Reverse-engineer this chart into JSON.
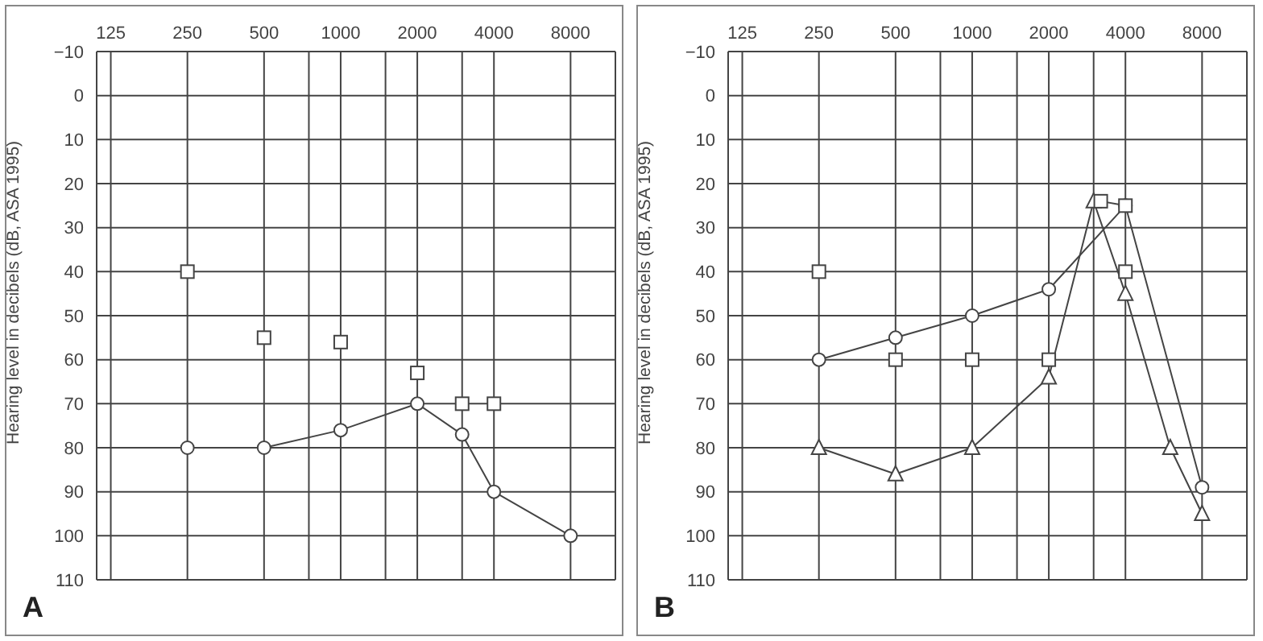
{
  "chart_data": [
    {
      "type": "line",
      "title": "A",
      "ylabel": "Hearing level in decibels (dB, ASA 1995)",
      "xlim": [
        110,
        12000
      ],
      "xticks": [
        125,
        250,
        {
          "value": 750,
          "label": null
        },
        500,
        1000,
        {
          "value": 1500,
          "label": null
        },
        2000,
        {
          "value": 3000,
          "label": null
        },
        4000,
        8000
      ],
      "ylim": [
        110,
        -10
      ],
      "yticks": [
        -10,
        0,
        10,
        20,
        30,
        40,
        50,
        60,
        70,
        80,
        90,
        100,
        110
      ],
      "grid": true,
      "log": "x",
      "series": [
        {
          "color": "#444444",
          "marker": "circle",
          "line_style": "solid",
          "x": [
            250,
            500,
            1000,
            2000,
            3000,
            4000,
            8000
          ],
          "values": [
            80,
            80,
            76,
            70,
            77,
            90,
            100
          ]
        },
        {
          "type": "scatter",
          "color": "#444444",
          "marker": "square",
          "x": [
            250,
            500,
            1000,
            2000,
            3000,
            4000
          ],
          "values": [
            40,
            55,
            56,
            63,
            70,
            70
          ]
        }
      ]
    },
    {
      "type": "line",
      "title": "B",
      "ylabel": "Hearing level in decibels (dB, ASA 1995)",
      "xlim": [
        110,
        12000
      ],
      "xticks": [
        125,
        250,
        {
          "value": 750,
          "label": null
        },
        500,
        1000,
        {
          "value": 1500,
          "label": null
        },
        2000,
        {
          "value": 3000,
          "label": null
        },
        4000,
        8000
      ],
      "ylim": [
        110,
        -10
      ],
      "yticks": [
        -10,
        0,
        10,
        20,
        30,
        40,
        50,
        60,
        70,
        80,
        90,
        100,
        110
      ],
      "grid": true,
      "log": "x",
      "series": [
        {
          "color": "#444444",
          "marker": "circle",
          "line_style": "solid",
          "x": [
            250,
            500,
            1000,
            2000,
            4000,
            8000
          ],
          "values": [
            60,
            55,
            50,
            44,
            25,
            89
          ]
        },
        {
          "color": "#444444",
          "marker": "triangle",
          "line_style": "solid",
          "x": [
            250,
            500,
            1000,
            2000,
            3000,
            4000,
            6000,
            8000
          ],
          "values": [
            80,
            86,
            80,
            64,
            24,
            45,
            80,
            95
          ]
        },
        {
          "color": "#444444",
          "marker": "square",
          "line_style": "solid",
          "x": [
            3200,
            4000
          ],
          "values": [
            24,
            25
          ]
        },
        {
          "type": "scatter",
          "color": "#444444",
          "marker": "square",
          "x": [
            250,
            500,
            1000,
            2000,
            4000
          ],
          "values": [
            40,
            60,
            60,
            60,
            40
          ]
        }
      ]
    }
  ]
}
